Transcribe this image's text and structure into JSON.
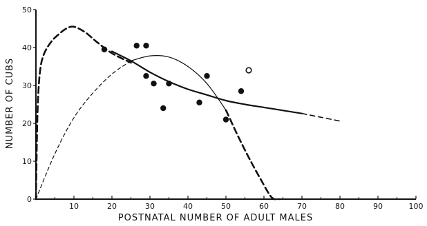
{
  "chart_data": {
    "type": "scatter",
    "title": "",
    "xlabel": "POSTNATAL NUMBER OF ADULT MALES",
    "ylabel": "NUMBER OF CUBS",
    "xlim": [
      0,
      100
    ],
    "ylim": [
      0,
      50
    ],
    "x_ticks": [
      10,
      20,
      30,
      40,
      50,
      60,
      70,
      80,
      90,
      100
    ],
    "y_ticks": [
      0,
      10,
      20,
      30,
      40,
      50
    ],
    "grid": false,
    "legend": "none",
    "points_filled": [
      {
        "x": 18,
        "y": 39.5
      },
      {
        "x": 26.5,
        "y": 40.5
      },
      {
        "x": 29,
        "y": 40.5
      },
      {
        "x": 29,
        "y": 32.5
      },
      {
        "x": 31,
        "y": 30.5
      },
      {
        "x": 33.5,
        "y": 24
      },
      {
        "x": 35,
        "y": 30.5
      },
      {
        "x": 43,
        "y": 25.5
      },
      {
        "x": 45,
        "y": 32.5
      },
      {
        "x": 50,
        "y": 21
      },
      {
        "x": 54,
        "y": 28.5
      }
    ],
    "points_open": [
      {
        "x": 56,
        "y": 34
      }
    ],
    "series": [
      {
        "style": "heavy-dashed",
        "x": [
          0,
          0.4,
          1,
          2,
          4,
          6,
          8,
          10,
          13,
          16,
          20,
          25
        ],
        "y": [
          0,
          22,
          33,
          38,
          41.5,
          43.5,
          45,
          45.5,
          44,
          41.5,
          38.5,
          36
        ]
      },
      {
        "style": "solid-heavy",
        "x": [
          20,
          25,
          30,
          35,
          40,
          45,
          50,
          55,
          60,
          65,
          70
        ],
        "y": [
          39,
          36.5,
          33.5,
          31,
          29,
          27.5,
          26,
          25,
          24.2,
          23.4,
          22.6
        ]
      },
      {
        "style": "dashed",
        "x": [
          70,
          75,
          80
        ],
        "y": [
          22.6,
          21.6,
          20.6
        ]
      },
      {
        "style": "thin-dashed",
        "x": [
          0,
          5,
          10,
          15,
          20,
          25
        ],
        "y": [
          0,
          12,
          21.5,
          28,
          33,
          36.5
        ]
      },
      {
        "style": "thin-solid",
        "x": [
          25,
          30,
          35,
          40,
          45,
          50
        ],
        "y": [
          36.5,
          37.8,
          37.5,
          35,
          30.5,
          23.5
        ]
      },
      {
        "style": "heavy-dashed",
        "x": [
          50,
          53,
          56,
          59,
          62,
          64
        ],
        "y": [
          23.5,
          17,
          11,
          5.5,
          0.5,
          0
        ]
      }
    ],
    "colors": {
      "ink": "#111111",
      "background": "#ffffff"
    }
  }
}
